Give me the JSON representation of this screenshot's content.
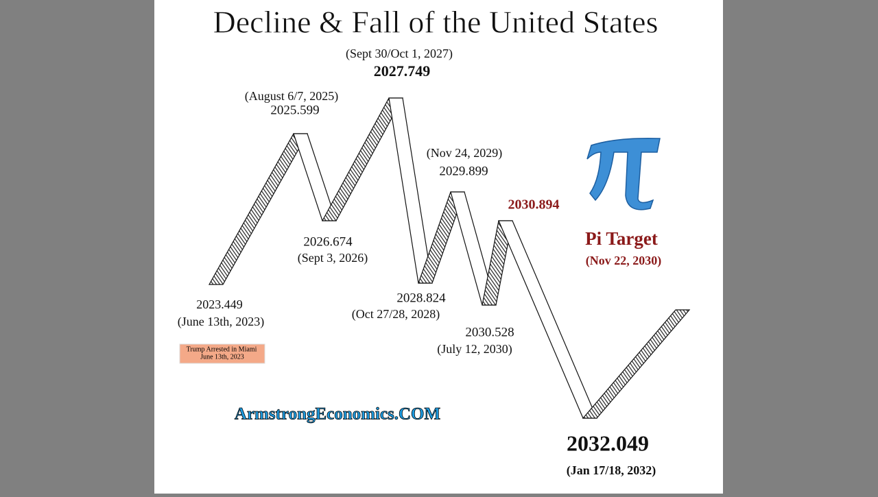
{
  "title": "Decline & Fall of the United States",
  "turning_points": [
    {
      "value": "2023.449",
      "date": "(June 13th, 2023)"
    },
    {
      "value": "2025.599",
      "date": "(August 6/7, 2025)"
    },
    {
      "value": "2026.674",
      "date": "(Sept 3, 2026)"
    },
    {
      "value": "2027.749",
      "date": "(Sept 30/Oct 1, 2027)"
    },
    {
      "value": "2028.824",
      "date": "(Oct 27/28, 2028)"
    },
    {
      "value": "2029.899",
      "date": "(Nov 24, 2029)"
    },
    {
      "value": "2030.528",
      "date": "(July 12, 2030)"
    },
    {
      "value": "2030.894"
    },
    {
      "value": "2032.049",
      "date": "(Jan 17/18, 2032)"
    }
  ],
  "pi_target": {
    "label": "Pi Target",
    "date": "(Nov 22, 2030)"
  },
  "note": {
    "lines": [
      "Trump Arrested in Miami",
      "June 13th, 2023"
    ]
  },
  "watermark": "ArmstrongEconomics.COM"
}
